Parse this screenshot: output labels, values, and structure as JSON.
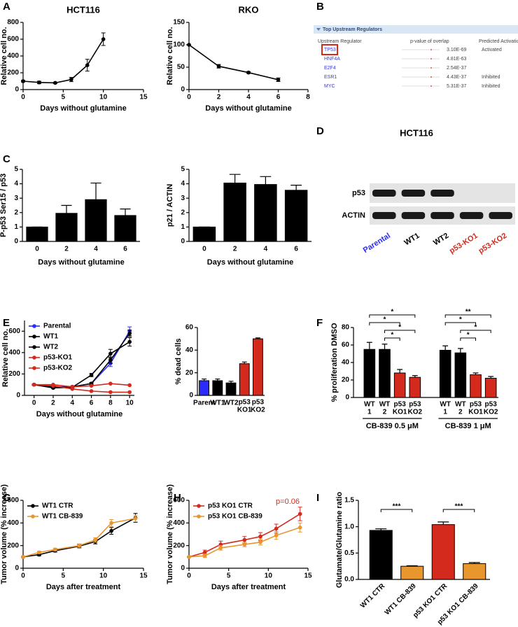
{
  "panel_labels": [
    "A",
    "B",
    "C",
    "D",
    "E",
    "F",
    "G",
    "H",
    "I"
  ],
  "chart_data": [
    {
      "type": "line",
      "title": "HCT116",
      "y_label": "Relative cell no.",
      "x_label": "Days without glutamine",
      "x": [
        0,
        2,
        4,
        6,
        8,
        10
      ],
      "xlim": [
        0,
        15
      ],
      "xticks": [
        0,
        5,
        10,
        15
      ],
      "ylim": [
        0,
        800
      ],
      "yticks": [
        0,
        200,
        400,
        600,
        800
      ],
      "series": [
        {
          "color": "#000000",
          "values": [
            100,
            85,
            80,
            120,
            290,
            600
          ],
          "errors": [
            10,
            15,
            8,
            25,
            70,
            75
          ]
        }
      ]
    },
    {
      "type": "line",
      "title": "RKO",
      "y_label": "Relative cell no.",
      "x_label": "Days without glutamine",
      "x": [
        0,
        2,
        4,
        6
      ],
      "xlim": [
        0,
        8
      ],
      "xticks": [
        0,
        2,
        4,
        6,
        8
      ],
      "ylim": [
        0,
        150
      ],
      "yticks": [
        0,
        50,
        100,
        150
      ],
      "series": [
        {
          "color": "#000000",
          "values": [
            100,
            52,
            38,
            22
          ],
          "errors": [
            0,
            4,
            2,
            4
          ]
        }
      ]
    },
    {
      "type": "table",
      "title": "Top Upstream Regulators",
      "columns": [
        "Upstream Regulator",
        "p-value of overlap",
        "Predicted Activation"
      ],
      "highlight_color": "#d42a1e",
      "rows": [
        {
          "name": "TP53",
          "p_value": "3.10E-69",
          "activation": "Activated",
          "highlighted": true
        },
        {
          "name": "HNF4A",
          "p_value": "4.81E-63"
        },
        {
          "name": "E2F4",
          "p_value": "2.54E-37"
        },
        {
          "name": "ESR1",
          "p_value": "4.43E-37",
          "activation": "Inhibited"
        },
        {
          "name": "MYC",
          "p_value": "5.31E-37",
          "activation": "Inhibited"
        }
      ]
    },
    {
      "type": "bar",
      "y_label": "P-p53 Ser15 / p53",
      "x_label": "Days without glutamine",
      "categories": [
        "0",
        "2",
        "4",
        "6"
      ],
      "values": [
        1,
        1.95,
        2.9,
        1.8
      ],
      "errors": [
        0,
        0.55,
        1.15,
        0.45
      ],
      "color": "#000000",
      "ylim": [
        0,
        5
      ],
      "yticks": [
        0,
        1,
        2,
        3,
        4,
        5
      ]
    },
    {
      "type": "bar",
      "y_label": "p21 / ACTIN",
      "x_label": "Days without glutamine",
      "categories": [
        "0",
        "2",
        "4",
        "6"
      ],
      "values": [
        1,
        4.05,
        3.95,
        3.55
      ],
      "errors": [
        0,
        0.6,
        0.55,
        0.35
      ],
      "color": "#000000",
      "ylim": [
        0,
        5
      ],
      "yticks": [
        0,
        1,
        2,
        3,
        4,
        5
      ]
    },
    {
      "type": "blot",
      "title": "HCT116",
      "rows": [
        "p53",
        "ACTIN"
      ],
      "lanes": [
        {
          "label": "Parental",
          "color": "#2b2bff"
        },
        {
          "label": "WT1",
          "color": "#000000"
        },
        {
          "label": "WT2",
          "color": "#000000"
        },
        {
          "label": "p53-KO1",
          "color": "#d42a1e"
        },
        {
          "label": "p53-KO2",
          "color": "#d42a1e"
        }
      ]
    },
    {
      "type": "line",
      "y_label": "Relative cell no.",
      "x_label": "Days without glutamine",
      "x": [
        0,
        2,
        4,
        6,
        8,
        10
      ],
      "xlim": [
        -1,
        10.5
      ],
      "xticks": [
        0,
        2,
        4,
        6,
        8,
        10
      ],
      "ylim": [
        0,
        700
      ],
      "yticks": [
        0,
        200,
        400,
        600
      ],
      "legend": "upper left",
      "series": [
        {
          "name": "Parental",
          "color": "#2b2bff",
          "values": [
            100,
            80,
            80,
            110,
            300,
            600
          ],
          "errors": [
            5,
            5,
            5,
            10,
            30,
            40
          ]
        },
        {
          "name": "WT1",
          "color": "#000000",
          "values": [
            100,
            70,
            75,
            190,
            390,
            500
          ],
          "errors": [
            5,
            5,
            5,
            15,
            40,
            40
          ]
        },
        {
          "name": "WT2",
          "color": "#000000",
          "values": [
            100,
            75,
            80,
            110,
            330,
            580
          ],
          "errors": [
            5,
            5,
            5,
            10,
            30,
            30
          ]
        },
        {
          "name": "p53-KO1",
          "color": "#d42a1e",
          "values": [
            100,
            100,
            80,
            90,
            110,
            95
          ]
        },
        {
          "name": "p53-KO2",
          "color": "#d42a1e",
          "values": [
            100,
            90,
            60,
            40,
            30,
            30
          ]
        }
      ]
    },
    {
      "type": "bar",
      "y_label": "% dead cells",
      "categories": [
        "Parent",
        "WT1",
        "WT2",
        [
          "p53",
          "KO1"
        ],
        [
          "p53",
          "KO2"
        ]
      ],
      "values": [
        13,
        13,
        11,
        28,
        50
      ],
      "errors": [
        1.5,
        1.5,
        1.5,
        1.5,
        0.8
      ],
      "colors": [
        "#2b2bff",
        "#000000",
        "#000000",
        "#d42a1e",
        "#d42a1e"
      ],
      "ylim": [
        0,
        60
      ],
      "yticks": [
        0,
        20,
        40,
        60
      ]
    },
    {
      "type": "bar",
      "y_label": "% proliferation DMSO",
      "categories": [
        [
          "WT",
          "1"
        ],
        [
          "WT",
          "2"
        ],
        [
          "p53",
          "KO1"
        ],
        [
          "p53",
          "KO2"
        ],
        [
          "WT",
          "1"
        ],
        [
          "WT",
          "2"
        ],
        [
          "p53",
          "KO1"
        ],
        [
          "p53",
          "KO2"
        ]
      ],
      "values": [
        55,
        55,
        28,
        23,
        54,
        51,
        26,
        22
      ],
      "errors": [
        8,
        6,
        4,
        2,
        5,
        5,
        2,
        2
      ],
      "colors": [
        "#000000",
        "#000000",
        "#d42a1e",
        "#d42a1e",
        "#000000",
        "#000000",
        "#d42a1e",
        "#d42a1e"
      ],
      "ylim": [
        0,
        80
      ],
      "yticks": [
        0,
        20,
        40,
        60,
        80
      ],
      "groups": [
        {
          "label": "CB-839 0.5 μM",
          "span": [
            0,
            3
          ]
        },
        {
          "label": "CB-839 1 μM",
          "span": [
            4,
            7
          ]
        }
      ],
      "brackets": [
        {
          "label": "*",
          "span": [
            0,
            3
          ]
        },
        {
          "label": "*",
          "span": [
            0,
            2
          ]
        },
        {
          "label": "*",
          "span": [
            1,
            3
          ]
        },
        {
          "label": "*",
          "span": [
            1,
            2
          ]
        },
        {
          "label": "**",
          "span": [
            4,
            7
          ]
        },
        {
          "label": "*",
          "span": [
            4,
            6
          ]
        },
        {
          "label": "*",
          "span": [
            5,
            7
          ]
        },
        {
          "label": "*",
          "span": [
            5,
            6
          ]
        }
      ]
    },
    {
      "type": "line",
      "y_label": "Tumor volume (% increase)",
      "x_label": "Days after treatment",
      "x": [
        0,
        2,
        4,
        7,
        9,
        11,
        14
      ],
      "xlim": [
        0,
        15
      ],
      "xticks": [
        0,
        5,
        10,
        15
      ],
      "ylim": [
        0,
        600
      ],
      "yticks": [
        0,
        200,
        400,
        600
      ],
      "legend": "upper left",
      "series": [
        {
          "name": "WT1 CTR",
          "color": "#000000",
          "values": [
            100,
            120,
            155,
            195,
            235,
            330,
            445
          ],
          "errors": [
            5,
            10,
            12,
            15,
            20,
            30,
            40
          ]
        },
        {
          "name": "WT1 CB-839",
          "color": "#e8962e",
          "values": [
            100,
            140,
            165,
            200,
            250,
            400,
            440
          ],
          "errors": [
            5,
            10,
            12,
            15,
            20,
            30,
            30
          ]
        }
      ]
    },
    {
      "type": "line",
      "y_label": "Tumor volume (% increase)",
      "x_label": "Days after treatment",
      "x": [
        0,
        2,
        4,
        7,
        9,
        11,
        14
      ],
      "xlim": [
        0,
        15
      ],
      "xticks": [
        0,
        5,
        10,
        15
      ],
      "ylim": [
        0,
        600
      ],
      "yticks": [
        0,
        200,
        400,
        600
      ],
      "legend": "upper left",
      "annotation": {
        "text": "p=0.06",
        "color": "#d42a1e"
      },
      "series": [
        {
          "name": "p53 KO1 CTR",
          "color": "#d42a1e",
          "values": [
            100,
            140,
            210,
            250,
            280,
            350,
            480
          ],
          "errors": [
            5,
            20,
            30,
            30,
            35,
            40,
            60
          ]
        },
        {
          "name": "p53 KO1 CB-839",
          "color": "#e8962e",
          "values": [
            100,
            110,
            180,
            210,
            230,
            290,
            360
          ],
          "errors": [
            5,
            15,
            20,
            20,
            25,
            35,
            40
          ]
        }
      ]
    },
    {
      "type": "bar",
      "y_label": "Glutamate/Glutamine ratio",
      "categories": [
        "WT1 CTR",
        "WT1 CB-839",
        "p53 KO1 CTR",
        "p53 KO1 CB-839"
      ],
      "x_label_rotation": -45,
      "values": [
        0.93,
        0.25,
        1.04,
        0.3
      ],
      "errors": [
        0.03,
        0.01,
        0.05,
        0.02
      ],
      "colors": [
        "#000000",
        "#e8962e",
        "#d42a1e",
        "#e8962e"
      ],
      "ylim": [
        0,
        1.5
      ],
      "yticks": [
        {
          "value": 0,
          "label": "0.0"
        },
        {
          "value": 0.5,
          "label": "0.5"
        },
        {
          "value": 1,
          "label": "1.0"
        },
        {
          "value": 1.5,
          "label": "1.5"
        }
      ],
      "brackets": [
        {
          "label": "***",
          "span": [
            0,
            1
          ]
        },
        {
          "label": "***",
          "span": [
            2,
            3
          ]
        }
      ]
    }
  ]
}
